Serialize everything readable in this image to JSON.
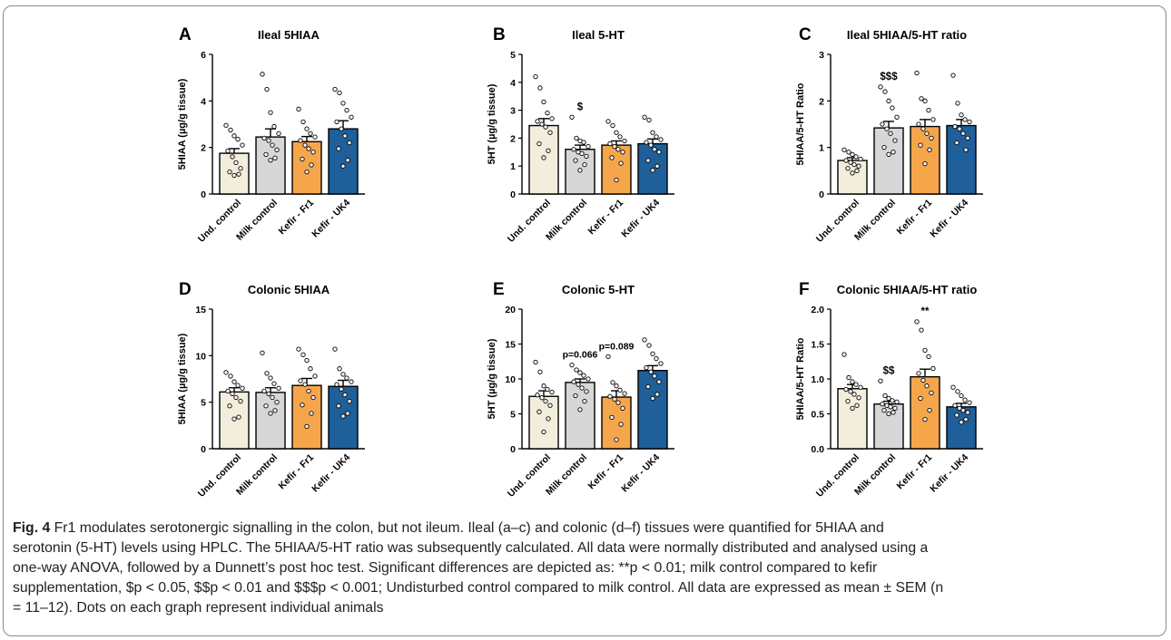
{
  "figure": {
    "colors": {
      "und_control": "#f3eedc",
      "milk_control": "#d7d7d7",
      "kefir_fr1": "#f5a64b",
      "kefir_uk4": "#1f5f9a",
      "axis": "#000000"
    },
    "caption": {
      "label": "Fig. 4",
      "line1": "Fr1 modulates serotonergic signalling in the colon, but not ileum. Ileal (a–c) and colonic (d–f) tissues were quantified for 5HIAA and",
      "line2": "serotonin (5-HT) levels using HPLC. The 5HIAA/5-HT ratio was subsequently calculated. All data were normally distributed and analysed using a",
      "line3": "one-way ANOVA, followed by a Dunnett’s post hoc test. Significant differences are depicted as: **p < 0.01; milk control compared to kefir",
      "line4": "supplementation, $p < 0.05, $$p < 0.01 and $$$p < 0.001; Undisturbed control compared to milk control. All data are expressed as mean ± SEM (n",
      "line5": "= 11–12). Dots on each graph represent individual animals"
    }
  },
  "chart_data": [
    {
      "panel": "A",
      "type": "bar",
      "title": "Ileal 5HIAA",
      "ylabel": "5HIAA (µg/g tissue)",
      "ylim": [
        0,
        6
      ],
      "yticks": [
        "0",
        "2",
        "4",
        "6"
      ],
      "categories": [
        "Und. control",
        "Milk control",
        "Kefir - Fr1",
        "Kefir - UK4"
      ],
      "values": [
        1.75,
        2.45,
        2.25,
        2.8
      ],
      "sem": [
        0.2,
        0.35,
        0.22,
        0.35
      ],
      "annotations": [
        "",
        "",
        "",
        ""
      ],
      "points": [
        [
          2.95,
          2.75,
          2.5,
          2.35,
          2.1,
          1.85,
          1.6,
          1.35,
          1.1,
          0.95,
          0.85,
          0.8
        ],
        [
          5.15,
          4.5,
          3.5,
          2.9,
          2.6,
          2.4,
          2.3,
          2.1,
          1.9,
          1.7,
          1.55,
          1.45
        ],
        [
          3.65,
          3.1,
          2.8,
          2.6,
          2.45,
          2.3,
          2.1,
          1.95,
          1.8,
          1.5,
          1.25,
          0.95
        ],
        [
          4.5,
          4.35,
          3.9,
          3.6,
          3.3,
          3.1,
          2.8,
          2.5,
          2.2,
          1.95,
          1.45,
          1.2
        ]
      ]
    },
    {
      "panel": "B",
      "type": "bar",
      "title": "Ileal 5-HT",
      "ylabel": "5HT (µg/g tissue)",
      "ylim": [
        0,
        5
      ],
      "yticks": [
        "0",
        "1",
        "2",
        "3",
        "4",
        "5"
      ],
      "categories": [
        "Und. control",
        "Milk control",
        "Kefir - Fr1",
        "Kefir - UK4"
      ],
      "values": [
        2.45,
        1.6,
        1.75,
        1.8
      ],
      "sem": [
        0.25,
        0.15,
        0.15,
        0.17
      ],
      "annotations": [
        "",
        "$",
        "",
        ""
      ],
      "points": [
        [
          4.2,
          3.8,
          3.3,
          2.9,
          2.7,
          2.6,
          2.5,
          2.4,
          2.2,
          1.8,
          1.55,
          1.3
        ],
        [
          2.75,
          2.0,
          1.9,
          1.85,
          1.7,
          1.6,
          1.5,
          1.45,
          1.35,
          1.2,
          1.05,
          0.85
        ],
        [
          2.6,
          2.45,
          2.2,
          2.05,
          1.9,
          1.8,
          1.7,
          1.6,
          1.5,
          1.3,
          1.1,
          0.5
        ],
        [
          2.75,
          2.65,
          2.2,
          2.05,
          1.95,
          1.85,
          1.75,
          1.6,
          1.5,
          1.2,
          1.0,
          0.85
        ]
      ]
    },
    {
      "panel": "C",
      "type": "bar",
      "title": "Ileal 5HIAA/5-HT ratio",
      "ylabel": "5HIAA/5-HT Ratio",
      "ylim": [
        0,
        3
      ],
      "yticks": [
        "0",
        "1",
        "2",
        "3"
      ],
      "categories": [
        "Und. control",
        "Milk control",
        "Kefir - Fr1",
        "Kefir - UK4"
      ],
      "values": [
        0.72,
        1.42,
        1.45,
        1.47
      ],
      "sem": [
        0.06,
        0.14,
        0.15,
        0.13
      ],
      "annotations": [
        "",
        "$$$",
        "",
        ""
      ],
      "points": [
        [
          0.95,
          0.9,
          0.85,
          0.8,
          0.75,
          0.72,
          0.68,
          0.63,
          0.6,
          0.55,
          0.5,
          0.45
        ],
        [
          2.3,
          2.2,
          2.0,
          1.85,
          1.65,
          1.5,
          1.4,
          1.3,
          1.15,
          1.0,
          0.9,
          0.85
        ],
        [
          2.6,
          2.05,
          2.0,
          1.8,
          1.6,
          1.5,
          1.4,
          1.3,
          1.2,
          1.05,
          0.95,
          0.65
        ],
        [
          2.55,
          1.95,
          1.7,
          1.6,
          1.55,
          1.45,
          1.4,
          1.3,
          1.2,
          1.1,
          0.95
        ]
      ]
    },
    {
      "panel": "D",
      "type": "bar",
      "title": "Colonic 5HIAA",
      "ylabel": "5HIAA (µg/g tissue)",
      "ylim": [
        0,
        15
      ],
      "yticks": [
        "0",
        "5",
        "10",
        "15"
      ],
      "categories": [
        "Und. control",
        "Milk control",
        "Kefir - Fr1",
        "Kefir - UK4"
      ],
      "values": [
        6.1,
        6.05,
        6.8,
        6.7
      ],
      "sem": [
        0.45,
        0.5,
        0.75,
        0.65
      ],
      "annotations": [
        "",
        "",
        "",
        ""
      ],
      "points": [
        [
          8.2,
          7.8,
          7.2,
          6.8,
          6.5,
          6.2,
          5.9,
          5.5,
          5.1,
          4.6,
          3.4,
          3.2
        ],
        [
          10.3,
          8.1,
          7.6,
          7.0,
          6.5,
          6.2,
          5.9,
          5.5,
          5.0,
          4.6,
          4.1,
          3.8
        ],
        [
          10.7,
          10.1,
          9.5,
          8.6,
          7.8,
          7.3,
          6.9,
          6.2,
          5.5,
          4.7,
          3.8,
          2.4
        ],
        [
          10.7,
          8.6,
          8.0,
          7.6,
          7.2,
          6.9,
          6.4,
          5.8,
          5.1,
          4.6,
          3.8,
          3.5
        ]
      ]
    },
    {
      "panel": "E",
      "type": "bar",
      "title": "Colonic 5-HT",
      "ylabel": "5HT (µg/g tissue)",
      "ylim": [
        0,
        20
      ],
      "yticks": [
        "0",
        "5",
        "10",
        "15",
        "20"
      ],
      "categories": [
        "Und. control",
        "Milk control",
        "Kefir - Fr1",
        "Kefir - UK4"
      ],
      "values": [
        7.5,
        9.5,
        7.4,
        11.2
      ],
      "sem": [
        0.8,
        0.5,
        0.9,
        0.7
      ],
      "annotations": [
        "",
        "p=0.066",
        "p=0.089",
        ""
      ],
      "points": [
        [
          12.4,
          11.0,
          9.0,
          8.5,
          8.1,
          7.7,
          7.3,
          6.8,
          6.2,
          5.3,
          4.3,
          2.4
        ],
        [
          12.0,
          11.3,
          10.9,
          10.5,
          10.0,
          9.6,
          9.2,
          8.7,
          8.2,
          7.6,
          6.8,
          5.6
        ],
        [
          13.2,
          9.5,
          9.0,
          8.4,
          7.9,
          7.5,
          7.1,
          6.6,
          5.8,
          4.5,
          3.5,
          1.3
        ],
        [
          15.6,
          14.8,
          13.6,
          12.9,
          12.2,
          11.6,
          11.0,
          10.4,
          9.6,
          8.9,
          7.8,
          7.2
        ]
      ]
    },
    {
      "panel": "F",
      "type": "bar",
      "title": "Colonic 5HIAA/5-HT ratio",
      "ylabel": "5HIAA/5-HT Ratio",
      "ylim": [
        0,
        2
      ],
      "yticks": [
        "0.0",
        "0.5",
        "1.0",
        "1.5",
        "2.0"
      ],
      "categories": [
        "Und. control",
        "Milk control",
        "Kefir - Fr1",
        "Kefir - UK4"
      ],
      "values": [
        0.86,
        0.64,
        1.03,
        0.6
      ],
      "sem": [
        0.06,
        0.04,
        0.11,
        0.05
      ],
      "annotations": [
        "",
        "$$",
        "**",
        ""
      ],
      "points": [
        [
          1.35,
          1.02,
          0.96,
          0.92,
          0.88,
          0.85,
          0.82,
          0.78,
          0.73,
          0.68,
          0.62,
          0.58
        ],
        [
          0.97,
          0.76,
          0.72,
          0.69,
          0.67,
          0.64,
          0.62,
          0.6,
          0.58,
          0.55,
          0.52,
          0.5
        ],
        [
          1.82,
          1.7,
          1.41,
          1.32,
          1.15,
          1.08,
          0.98,
          0.9,
          0.8,
          0.72,
          0.55,
          0.42
        ],
        [
          0.88,
          0.82,
          0.76,
          0.7,
          0.66,
          0.62,
          0.58,
          0.55,
          0.52,
          0.48,
          0.42,
          0.38
        ]
      ]
    }
  ]
}
